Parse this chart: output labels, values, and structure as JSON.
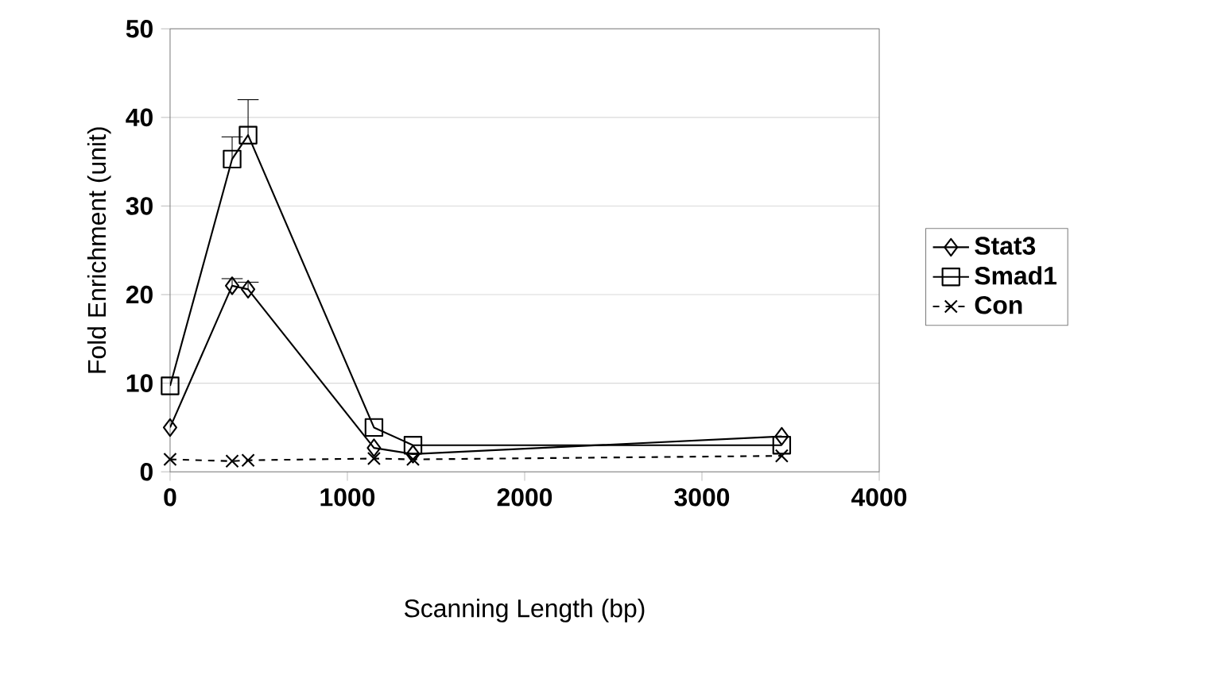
{
  "chart_data": {
    "type": "line",
    "xlabel": "Scanning Length (bp)",
    "ylabel": "Fold Enrichment (unit)",
    "xlim": [
      0,
      4000
    ],
    "xticks": [
      0,
      1000,
      2000,
      3000,
      4000
    ],
    "ylim": [
      0,
      50
    ],
    "yticks": [
      0,
      10,
      20,
      30,
      40,
      50
    ],
    "grid": "y",
    "legend": "right",
    "series": [
      {
        "name": "Stat3",
        "color": "#000000",
        "marker": "diamond",
        "line_style": "solid",
        "x": [
          0,
          350,
          440,
          1150,
          1370,
          3450
        ],
        "values": [
          5.0,
          21.0,
          20.6,
          2.7,
          2.0,
          4.0
        ],
        "errors": [
          null,
          0.8,
          0.8,
          null,
          null,
          null
        ]
      },
      {
        "name": "Smad1",
        "color": "#000000",
        "marker": "square",
        "line_style": "solid",
        "x": [
          0,
          350,
          440,
          1150,
          1370,
          3450
        ],
        "values": [
          9.7,
          35.3,
          38.0,
          5.0,
          3.0,
          3.0
        ],
        "errors": [
          null,
          2.5,
          4.0,
          null,
          null,
          null
        ]
      },
      {
        "name": "Con",
        "color": "#000000",
        "marker": "cross",
        "line_style": "dashed",
        "x": [
          0,
          350,
          440,
          1150,
          1370,
          3450
        ],
        "values": [
          1.4,
          1.2,
          1.3,
          1.5,
          1.4,
          1.8
        ]
      }
    ]
  }
}
